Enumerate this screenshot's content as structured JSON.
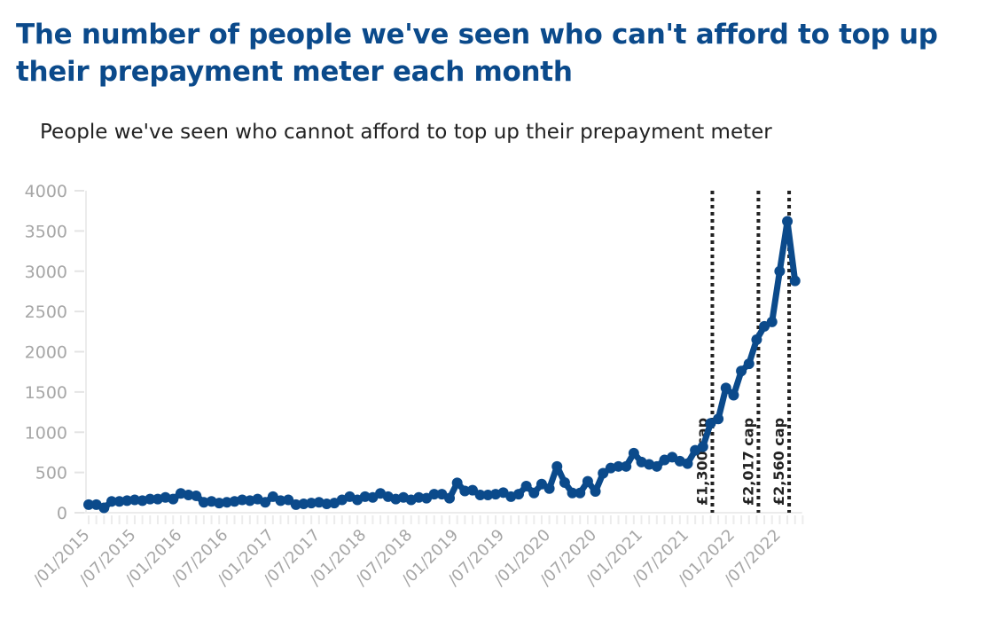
{
  "title": "The number of people we've seen who can't afford to top up their prepayment meter each month",
  "chart_data": {
    "type": "line",
    "title": "People we've seen who cannot afford to top up their prepayment meter",
    "xlabel": "",
    "ylabel": "",
    "x_start": "01/2015",
    "x_end": "09/2022",
    "x_interval": "monthly",
    "ylim": [
      0,
      4000
    ],
    "yticks": [
      "0",
      "500",
      "1000",
      "1500",
      "2000",
      "2500",
      "3000",
      "3500",
      "4000"
    ],
    "xticks": [
      "/01/2015",
      "/07/2015",
      "/01/2016",
      "/07/2016",
      "/01/2017",
      "/07/2017",
      "/01/2018",
      "/07/2018",
      "/01/2019",
      "/07/2019",
      "/01/2020",
      "/07/2020",
      "/01/2021",
      "/07/2021",
      "/01/2022",
      "/07/2022"
    ],
    "grid": false,
    "line_color": "#0b4a8b",
    "values": [
      100,
      100,
      60,
      140,
      140,
      150,
      160,
      150,
      170,
      170,
      190,
      170,
      240,
      220,
      210,
      130,
      140,
      120,
      130,
      140,
      160,
      150,
      170,
      130,
      200,
      150,
      160,
      100,
      110,
      120,
      130,
      110,
      120,
      160,
      200,
      160,
      200,
      190,
      240,
      200,
      170,
      190,
      160,
      190,
      180,
      230,
      230,
      180,
      370,
      270,
      280,
      220,
      220,
      230,
      250,
      200,
      230,
      330,
      245,
      355,
      300,
      575,
      375,
      245,
      245,
      390,
      265,
      490,
      555,
      575,
      575,
      740,
      630,
      600,
      575,
      655,
      690,
      640,
      610,
      775,
      820,
      1110,
      1165,
      1550,
      1460,
      1760,
      1850,
      2150,
      2315,
      2370,
      3000,
      3620,
      2880
    ],
    "annotations": [
      {
        "label": "£1,300 cap",
        "x": "10/2021",
        "style": "dotted vertical line"
      },
      {
        "label": "£2,017 cap",
        "x": "04/2022",
        "style": "dotted vertical line"
      },
      {
        "label": "£2,560 cap",
        "x": "08/2022",
        "style": "dotted vertical line"
      }
    ]
  }
}
